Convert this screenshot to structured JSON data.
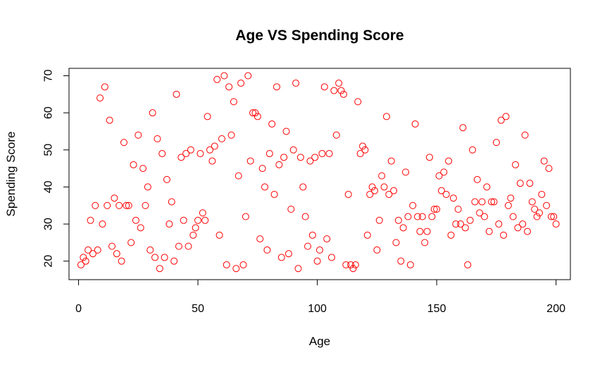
{
  "chart_data": {
    "type": "scatter",
    "title": "Age VS Spending Score",
    "xlabel": "Age",
    "ylabel": "Spending Score",
    "xlim": [
      -4,
      206
    ],
    "ylim": [
      15,
      72
    ],
    "xticks": [
      0,
      50,
      100,
      150,
      200
    ],
    "xtick_labels": [
      "0",
      "50",
      "100",
      "150",
      "200"
    ],
    "yticks": [
      20,
      30,
      40,
      50,
      60,
      70
    ],
    "ytick_labels": [
      "20",
      "30",
      "40",
      "50",
      "60",
      "70"
    ],
    "grid": false,
    "legend": "none",
    "point_color": "#ff0000",
    "marker": "open-circle",
    "x": [
      1,
      2,
      3,
      4,
      5,
      6,
      7,
      8,
      9,
      10,
      11,
      12,
      13,
      14,
      15,
      16,
      17,
      18,
      19,
      20,
      21,
      22,
      23,
      24,
      25,
      26,
      27,
      28,
      29,
      30,
      31,
      32,
      33,
      34,
      35,
      36,
      37,
      38,
      39,
      40,
      41,
      42,
      43,
      44,
      45,
      46,
      47,
      48,
      49,
      50,
      51,
      52,
      53,
      54,
      55,
      56,
      57,
      58,
      59,
      60,
      61,
      62,
      63,
      64,
      65,
      66,
      67,
      68,
      69,
      70,
      71,
      72,
      73,
      74,
      75,
      76,
      77,
      78,
      79,
      80,
      81,
      82,
      83,
      84,
      85,
      86,
      87,
      88,
      89,
      90,
      91,
      92,
      93,
      94,
      95,
      96,
      97,
      98,
      99,
      100,
      101,
      102,
      103,
      104,
      105,
      106,
      107,
      108,
      109,
      110,
      111,
      112,
      113,
      114,
      115,
      116,
      117,
      118,
      119,
      120,
      121,
      122,
      123,
      124,
      125,
      126,
      127,
      128,
      129,
      130,
      131,
      132,
      133,
      134,
      135,
      136,
      137,
      138,
      139,
      140,
      141,
      142,
      143,
      144,
      145,
      146,
      147,
      148,
      149,
      150,
      151,
      152,
      153,
      154,
      155,
      156,
      157,
      158,
      159,
      160,
      161,
      162,
      163,
      164,
      165,
      166,
      167,
      168,
      169,
      170,
      171,
      172,
      173,
      174,
      175,
      176,
      177,
      178,
      179,
      180,
      181,
      182,
      183,
      184,
      185,
      186,
      187,
      188,
      189,
      190,
      191,
      192,
      193,
      194,
      195,
      196,
      197,
      198,
      199,
      200
    ],
    "y": [
      19,
      21,
      20,
      23,
      31,
      22,
      35,
      23,
      64,
      30,
      67,
      35,
      58,
      24,
      37,
      22,
      35,
      20,
      52,
      35,
      35,
      25,
      46,
      31,
      54,
      29,
      45,
      35,
      40,
      23,
      60,
      21,
      53,
      18,
      49,
      21,
      42,
      30,
      36,
      20,
      65,
      24,
      48,
      31,
      49,
      24,
      50,
      27,
      29,
      31,
      49,
      33,
      31,
      59,
      50,
      47,
      51,
      69,
      27,
      53,
      70,
      19,
      67,
      54,
      63,
      18,
      43,
      68,
      19,
      32,
      70,
      47,
      60,
      60,
      59,
      26,
      45,
      40,
      23,
      49,
      57,
      38,
      67,
      46,
      21,
      48,
      55,
      22,
      34,
      50,
      68,
      18,
      48,
      40,
      32,
      24,
      47,
      27,
      48,
      20,
      23,
      49,
      67,
      26,
      49,
      21,
      66,
      54,
      68,
      66,
      65,
      19,
      38,
      19,
      18,
      19,
      63,
      49,
      51,
      50,
      27,
      38,
      40,
      39,
      23,
      31,
      43,
      40,
      59,
      38,
      47,
      39,
      25,
      31,
      20,
      29,
      44,
      32,
      19,
      35,
      57,
      32,
      28,
      32,
      25,
      28,
      48,
      32,
      34,
      34,
      43,
      39,
      44,
      38,
      47,
      27,
      37,
      30,
      34,
      30,
      56,
      29,
      19,
      31,
      50,
      36,
      42,
      33,
      36,
      32,
      40,
      28,
      36,
      36,
      52,
      30,
      58,
      27,
      59,
      35,
      37,
      32,
      46,
      29,
      41,
      30,
      54,
      28,
      41,
      36,
      34,
      32,
      33,
      38,
      47,
      35,
      45,
      32,
      32,
      30
    ]
  }
}
